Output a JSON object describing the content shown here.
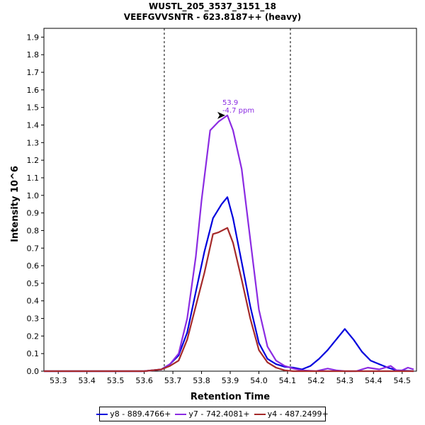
{
  "chart_data": {
    "type": "line",
    "title": "WUSTL_205_3537_3151_18",
    "subtitle": "VEEFGVVSNTR - 623.8187++ (heavy)",
    "xlabel": "Retention Time",
    "ylabel": "Intensity 10^6",
    "xlim": [
      53.25,
      54.55
    ],
    "ylim": [
      0,
      1.95
    ],
    "xticks": [
      "53.3",
      "53.4",
      "53.5",
      "53.6",
      "53.7",
      "53.8",
      "53.9",
      "54.0",
      "54.1",
      "54.2",
      "54.3",
      "54.4",
      "54.5"
    ],
    "yticks": [
      "0.0",
      "0.1",
      "0.2",
      "0.3",
      "0.4",
      "0.5",
      "0.6",
      "0.7",
      "0.8",
      "0.9",
      "1.0",
      "1.1",
      "1.2",
      "1.3",
      "1.4",
      "1.5",
      "1.6",
      "1.7",
      "1.8",
      "1.9"
    ],
    "grid": false,
    "legend_position": "bottom",
    "boundary_lines": [
      53.67,
      54.11
    ],
    "annotation": {
      "x": 53.89,
      "y": 1.455,
      "text1": "53.9",
      "text2": "-4.7 ppm",
      "color": "#8b2be2"
    },
    "series": [
      {
        "name": "y8 - 889.4766+",
        "color": "#0000dd",
        "x": [
          53.25,
          53.6,
          53.66,
          53.69,
          53.72,
          53.75,
          53.78,
          53.81,
          53.84,
          53.87,
          53.89,
          53.91,
          53.94,
          53.97,
          54.0,
          54.03,
          54.06,
          54.09,
          54.12,
          54.15,
          54.18,
          54.21,
          54.24,
          54.27,
          54.3,
          54.33,
          54.36,
          54.39,
          54.42,
          54.45,
          54.48,
          54.51,
          54.54
        ],
        "y": [
          0.0,
          0.0,
          0.01,
          0.04,
          0.09,
          0.22,
          0.45,
          0.68,
          0.87,
          0.95,
          0.99,
          0.87,
          0.62,
          0.37,
          0.16,
          0.07,
          0.04,
          0.025,
          0.02,
          0.01,
          0.03,
          0.07,
          0.12,
          0.18,
          0.24,
          0.18,
          0.11,
          0.06,
          0.04,
          0.02,
          0.005,
          0.002,
          0.0
        ]
      },
      {
        "name": "y7 - 742.4081+",
        "color": "#8b2be2",
        "x": [
          53.25,
          53.6,
          53.66,
          53.69,
          53.72,
          53.75,
          53.78,
          53.8,
          53.83,
          53.86,
          53.89,
          53.91,
          53.94,
          53.97,
          54.0,
          54.03,
          54.06,
          54.09,
          54.12,
          54.15,
          54.2,
          54.24,
          54.27,
          54.3,
          54.34,
          54.38,
          54.42,
          54.44,
          54.46,
          54.48,
          54.5,
          54.52,
          54.54
        ],
        "y": [
          0.0,
          0.0,
          0.01,
          0.04,
          0.1,
          0.3,
          0.65,
          0.97,
          1.37,
          1.42,
          1.455,
          1.37,
          1.15,
          0.75,
          0.35,
          0.14,
          0.06,
          0.03,
          0.015,
          0.005,
          0.0,
          0.015,
          0.005,
          0.0,
          0.0,
          0.02,
          0.01,
          0.02,
          0.03,
          0.005,
          0.005,
          0.02,
          0.01
        ]
      },
      {
        "name": "y4 - 487.2499+",
        "color": "#a52a2a",
        "x": [
          53.25,
          53.6,
          53.66,
          53.69,
          53.72,
          53.75,
          53.78,
          53.81,
          53.84,
          53.86,
          53.89,
          53.91,
          53.94,
          53.97,
          54.0,
          54.03,
          54.06,
          54.09,
          54.12,
          54.54
        ],
        "y": [
          0.0,
          0.0,
          0.01,
          0.03,
          0.06,
          0.18,
          0.37,
          0.56,
          0.78,
          0.79,
          0.815,
          0.73,
          0.52,
          0.3,
          0.12,
          0.05,
          0.02,
          0.005,
          0.0,
          0.0
        ]
      }
    ]
  }
}
